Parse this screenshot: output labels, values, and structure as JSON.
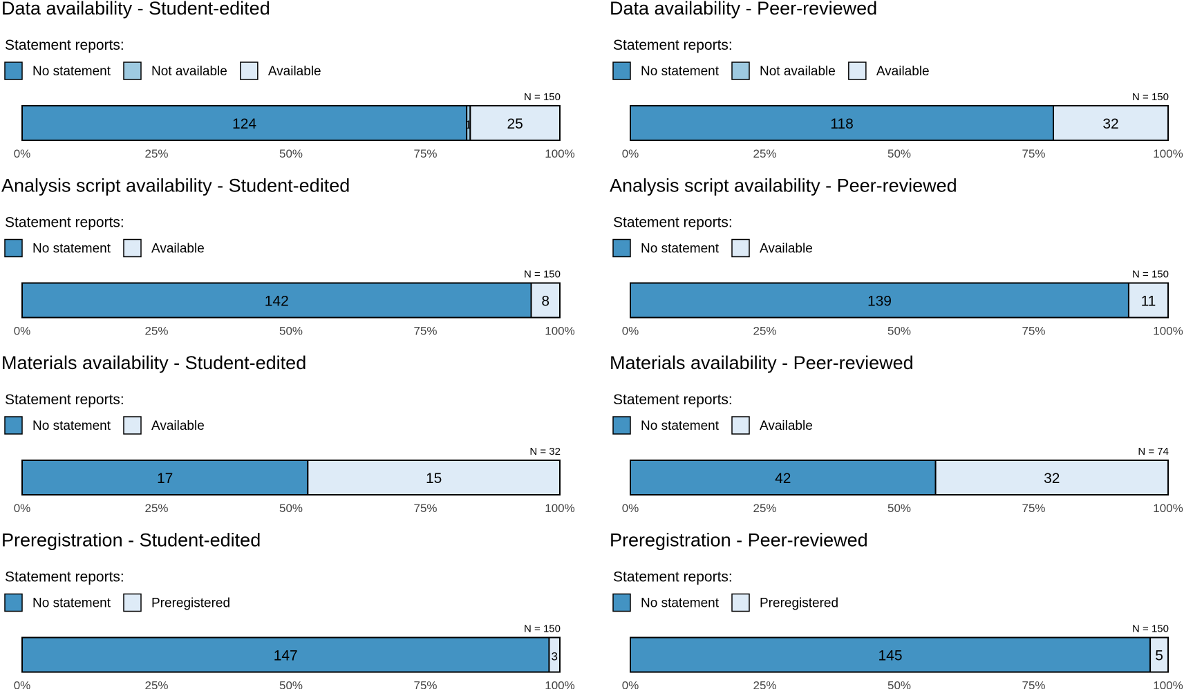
{
  "colors": {
    "No statement": "#4393c3",
    "Not available": "#9ecae1",
    "Available": "#deebf7",
    "Preregistered": "#deebf7"
  },
  "legend_heading": "Statement reports:",
  "axis_ticks": [
    "0%",
    "25%",
    "50%",
    "75%",
    "100%"
  ],
  "chart_data": [
    {
      "type": "bar",
      "orientation": "horizontal",
      "stacked": "percent",
      "title": "Data availability - Student-edited",
      "n_label": "N = 150",
      "categories": [
        "No statement",
        "Not available",
        "Available"
      ],
      "values": [
        124,
        1,
        25
      ],
      "segment_labels": [
        "124",
        "1",
        "25"
      ],
      "xlim": [
        0,
        100
      ]
    },
    {
      "type": "bar",
      "orientation": "horizontal",
      "stacked": "percent",
      "title": "Data availability - Peer-reviewed",
      "n_label": "N = 150",
      "categories": [
        "No statement",
        "Not available",
        "Available"
      ],
      "values": [
        118,
        0,
        32
      ],
      "segment_labels": [
        "118",
        "",
        "32"
      ],
      "xlim": [
        0,
        100
      ]
    },
    {
      "type": "bar",
      "orientation": "horizontal",
      "stacked": "percent",
      "title": "Analysis script availability - Student-edited",
      "n_label": "N = 150",
      "categories": [
        "No statement",
        "Available"
      ],
      "values": [
        142,
        8
      ],
      "segment_labels": [
        "142",
        "8"
      ],
      "xlim": [
        0,
        100
      ]
    },
    {
      "type": "bar",
      "orientation": "horizontal",
      "stacked": "percent",
      "title": "Analysis script availability - Peer-reviewed",
      "n_label": "N = 150",
      "categories": [
        "No statement",
        "Available"
      ],
      "values": [
        139,
        11
      ],
      "segment_labels": [
        "139",
        "11"
      ],
      "xlim": [
        0,
        100
      ]
    },
    {
      "type": "bar",
      "orientation": "horizontal",
      "stacked": "percent",
      "title": "Materials availability - Student-edited",
      "n_label": "N = 32",
      "categories": [
        "No statement",
        "Available"
      ],
      "values": [
        17,
        15
      ],
      "segment_labels": [
        "17",
        "15"
      ],
      "xlim": [
        0,
        100
      ]
    },
    {
      "type": "bar",
      "orientation": "horizontal",
      "stacked": "percent",
      "title": "Materials availability - Peer-reviewed",
      "n_label": "N = 74",
      "categories": [
        "No statement",
        "Available"
      ],
      "values": [
        42,
        32
      ],
      "segment_labels": [
        "42",
        "32"
      ],
      "xlim": [
        0,
        100
      ]
    },
    {
      "type": "bar",
      "orientation": "horizontal",
      "stacked": "percent",
      "title": "Preregistration - Student-edited",
      "n_label": "N = 150",
      "categories": [
        "No statement",
        "Preregistered"
      ],
      "values": [
        147,
        3
      ],
      "segment_labels": [
        "147",
        "3"
      ],
      "xlim": [
        0,
        100
      ]
    },
    {
      "type": "bar",
      "orientation": "horizontal",
      "stacked": "percent",
      "title": "Preregistration - Peer-reviewed",
      "n_label": "N = 150",
      "categories": [
        "No statement",
        "Preregistered"
      ],
      "values": [
        145,
        5
      ],
      "segment_labels": [
        "145",
        "5"
      ],
      "xlim": [
        0,
        100
      ]
    }
  ]
}
